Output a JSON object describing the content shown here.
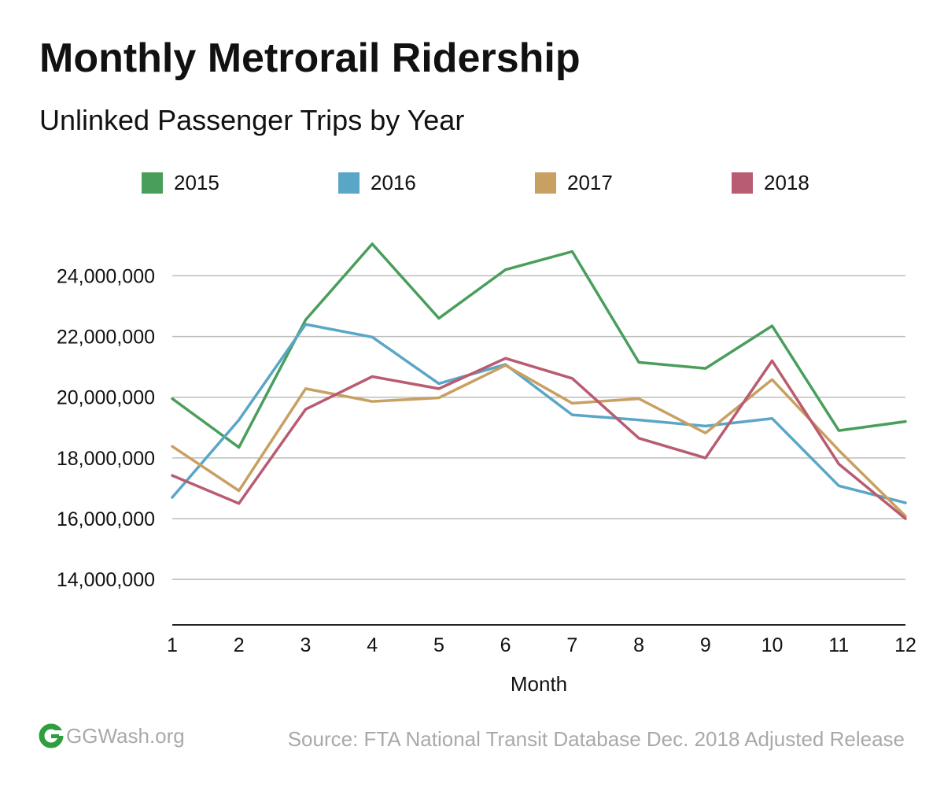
{
  "colors": {
    "2015": "#4a9e5c",
    "2016": "#5aa6c7",
    "2017": "#c8a062",
    "2018": "#b85c72",
    "grid": "#bdbdbd",
    "axis": "#222222",
    "footer_text": "#a9a9a9",
    "logo_green": "#2e9e3e"
  },
  "footer": {
    "logo_text": "GGWash.org",
    "logo_icon": "ggwash-logo-icon",
    "source": "Source: FTA National Transit Database Dec. 2018 Adjusted Release"
  },
  "chart_data": {
    "type": "line",
    "title": "Monthly Metrorail Ridership",
    "subtitle": "Unlinked Passenger Trips by Year",
    "xlabel": "Month",
    "ylabel": "",
    "x": [
      1,
      2,
      3,
      4,
      5,
      6,
      7,
      8,
      9,
      10,
      11,
      12
    ],
    "x_tick_labels": [
      "1",
      "2",
      "3",
      "4",
      "5",
      "6",
      "7",
      "8",
      "9",
      "10",
      "11",
      "12"
    ],
    "y_ticks": [
      14000000,
      16000000,
      18000000,
      20000000,
      22000000,
      24000000
    ],
    "y_tick_labels": [
      "14,000,000",
      "16,000,000",
      "18,000,000",
      "20,000,000",
      "22,000,000",
      "24,000,000"
    ],
    "ylim": [
      12500000,
      26500000
    ],
    "grid": true,
    "legend_placement": "top",
    "series": [
      {
        "name": "2015",
        "values": [
          19950000,
          18350000,
          22550000,
          25050000,
          22600000,
          24200000,
          24800000,
          21150000,
          20950000,
          22350000,
          18900000,
          19200000
        ]
      },
      {
        "name": "2016",
        "values": [
          16700000,
          19250000,
          22400000,
          21980000,
          20450000,
          21080000,
          19420000,
          19250000,
          19050000,
          19300000,
          17080000,
          16520000
        ]
      },
      {
        "name": "2017",
        "values": [
          18380000,
          16920000,
          20280000,
          19860000,
          19980000,
          21050000,
          19800000,
          19950000,
          18820000,
          20580000,
          18250000,
          16080000
        ]
      },
      {
        "name": "2018",
        "values": [
          17420000,
          16500000,
          19600000,
          20680000,
          20280000,
          21280000,
          20620000,
          18650000,
          18000000,
          21200000,
          17800000,
          16000000
        ]
      }
    ]
  }
}
